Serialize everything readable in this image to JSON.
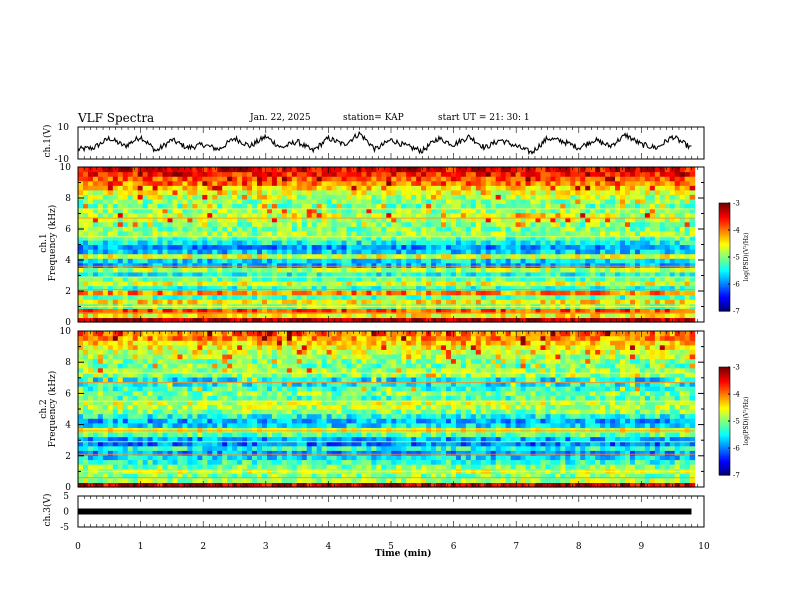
{
  "header": {
    "title": "VLF Spectra",
    "date": "Jan. 22, 2025",
    "station": "station= KAP",
    "start": "start UT =  21: 30: 1"
  },
  "chart_data": [
    {
      "type": "line",
      "panel": "ch1",
      "ylabel": "ch.1(V)",
      "ylim": [
        -10,
        10
      ],
      "yticks": [
        "10",
        "-10"
      ],
      "x": [
        0,
        0.25,
        0.5,
        0.75,
        1,
        1.25,
        1.5,
        1.75,
        2,
        2.25,
        2.5,
        2.75,
        3,
        3.25,
        3.5,
        3.75,
        4,
        4.25,
        4.5,
        4.75,
        5,
        5.25,
        5.5,
        5.75,
        6,
        6.25,
        6.5,
        6.75,
        7,
        7.25,
        7.5,
        7.75,
        8,
        8.25,
        8.5,
        8.75,
        9,
        9.25,
        9.5,
        9.75
      ],
      "values": [
        -4,
        -3,
        3,
        -2,
        4,
        -5,
        2,
        -3,
        -1,
        -4,
        3,
        -2,
        4,
        -3,
        1,
        -5,
        3,
        -1,
        6,
        -4,
        2,
        -2,
        -5,
        3,
        -1,
        4,
        -3,
        2,
        -2,
        -6,
        3,
        1,
        -3,
        2,
        -2,
        5,
        -1,
        -3,
        4,
        -2
      ]
    },
    {
      "type": "heatmap",
      "panel": "ch1_spectrogram",
      "ylabel": "ch.1",
      "ylabel2": "Frequency  (kHz)",
      "ylim": [
        0,
        10
      ],
      "yticks": [
        "0",
        "2",
        "4",
        "6",
        "8",
        "10"
      ],
      "colorbar_label": "log(PSD)(V²/Hz)",
      "colorbar_range": [
        -7,
        -3
      ],
      "colorbar_ticks": [
        "-3",
        "-4",
        "-5",
        "-6",
        "-7"
      ],
      "band_levels": [
        -3.2,
        -4.5,
        -3.8,
        -5.0,
        -4.4,
        -5.2,
        -4.0,
        -5.3,
        -4.6,
        -5.1,
        -5.4,
        -4.8,
        -5.8,
        -5.6,
        -4.6,
        -5.7,
        -5.9,
        -5.5,
        -5.2,
        -4.9,
        -5.0,
        -5.0,
        -4.8,
        -4.7,
        -4.9,
        -5.1,
        -5.0,
        -4.8,
        -4.6,
        -4.3,
        -4.0,
        -3.8,
        -3.6,
        -3.5
      ]
    },
    {
      "type": "heatmap",
      "panel": "ch2_spectrogram",
      "ylabel": "ch.2",
      "ylabel2": "Frequency  (kHz)",
      "ylim": [
        0,
        10
      ],
      "yticks": [
        "0",
        "2",
        "4",
        "6",
        "8",
        "10"
      ],
      "colorbar_label": "log(PSD)(V²/Hz)",
      "colorbar_range": [
        -7,
        -3
      ],
      "colorbar_ticks": [
        "-3",
        "-4",
        "-5",
        "-6",
        "-7"
      ],
      "band_levels": [
        -3.3,
        -4.8,
        -5.0,
        -4.7,
        -5.0,
        -5.3,
        -5.6,
        -5.9,
        -5.4,
        -6.0,
        -5.8,
        -5.1,
        -4.6,
        -5.6,
        -5.8,
        -5.4,
        -5.0,
        -4.8,
        -4.7,
        -5.2,
        -5.0,
        -5.3,
        -5.5,
        -5.6,
        -5.0,
        -4.9,
        -5.1,
        -5.0,
        -4.8,
        -4.7,
        -4.5,
        -4.3,
        -4.1,
        -4.0
      ]
    },
    {
      "type": "line",
      "panel": "ch3",
      "ylabel": "ch.3(V)",
      "ylim": [
        -5,
        5
      ],
      "yticks": [
        "5",
        "0",
        "-5"
      ],
      "x": [
        0,
        9.8
      ],
      "values": [
        0,
        0
      ]
    }
  ],
  "xaxis": {
    "label": "Time  (min)",
    "xlim": [
      0,
      10
    ],
    "ticks": [
      "0",
      "1",
      "2",
      "3",
      "4",
      "5",
      "6",
      "7",
      "8",
      "9",
      "10"
    ]
  }
}
